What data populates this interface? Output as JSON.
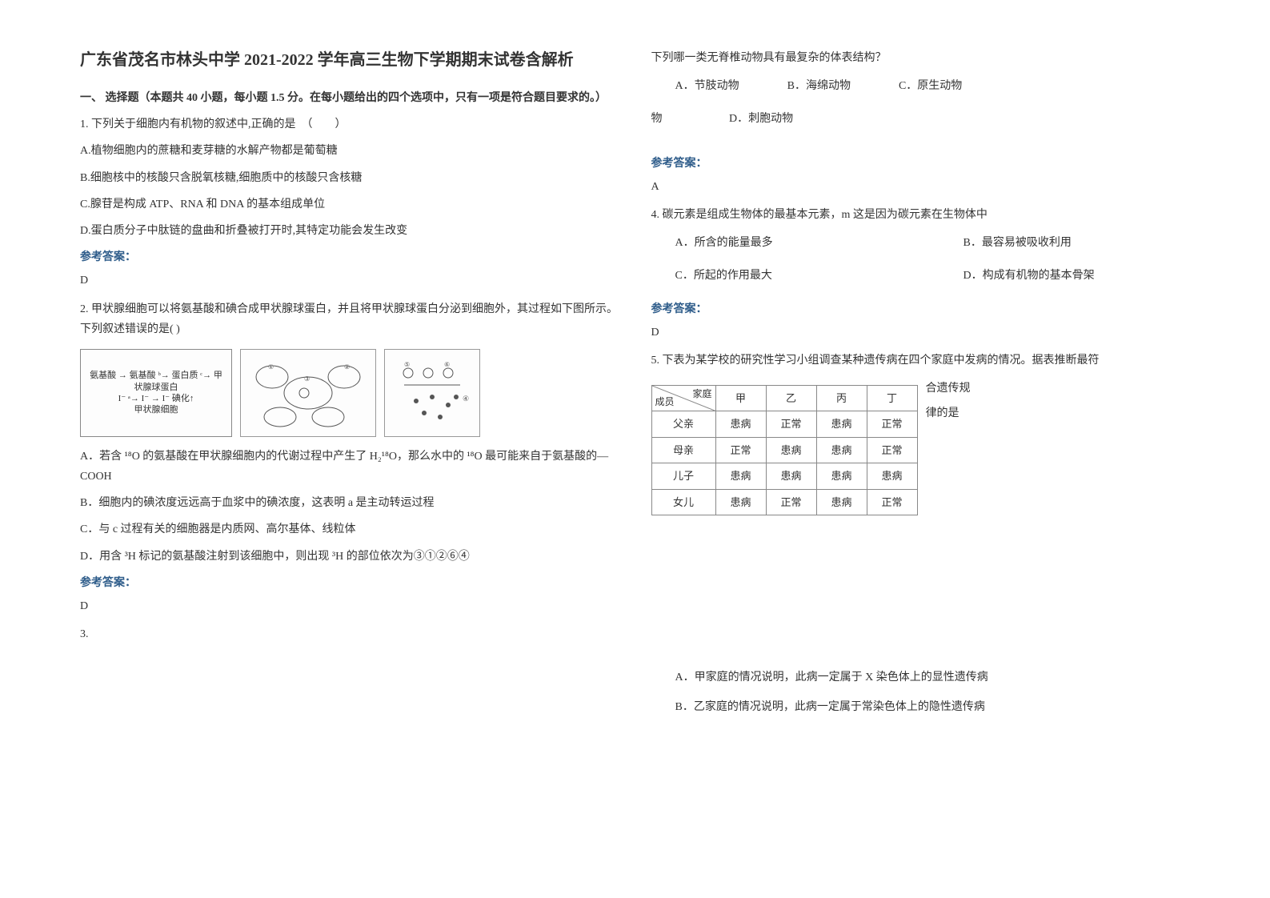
{
  "title": "广东省茂名市林头中学 2021-2022 学年高三生物下学期期末试卷含解析",
  "section_heading": "一、 选择题（本题共 40 小题，每小题 1.5 分。在每小题给出的四个选项中，只有一项是符合题目要求的。）",
  "q1": {
    "stem": "1. 下列关于细胞内有机物的叙述中,正确的是　（　　）",
    "optA": "A.植物细胞内的蔗糖和麦芽糖的水解产物都是葡萄糖",
    "optB": "B.细胞核中的核酸只含脱氧核糖,细胞质中的核酸只含核糖",
    "optC": "C.腺苷是构成 ATP、RNA 和 DNA 的基本组成单位",
    "optD": "D.蛋白质分子中肽链的盘曲和折叠被打开时,其特定功能会发生改变",
    "answer_label": "参考答案：",
    "answer": "D"
  },
  "q2": {
    "stem": "2. 甲状腺细胞可以将氨基酸和碘合成甲状腺球蛋白，并且将甲状腺球蛋白分泌到细胞外，其过程如下图所示。下列叙述错误的是(   )",
    "diagram_left": "氨基酸 → 氨基酸 ᵇ→ 蛋白质 ᶜ→ 甲状腺球蛋白\n  I⁻ ᵃ→ I⁻ →  I⁻  碘化↑\n        甲状腺细胞",
    "optA": "A．若含 ¹⁸O 的氨基酸在甲状腺细胞内的代谢过程中产生了 H₂¹⁸O，那么水中的 ¹⁸O 最可能来自于氨基酸的—COOH",
    "optB": "B．细胞内的碘浓度远远高于血浆中的碘浓度，这表明 a 是主动转运过程",
    "optC": "C．与 c 过程有关的细胞器是内质网、高尔基体、线粒体",
    "optD": "D．用含 ³H 标记的氨基酸注射到该细胞中，则出现 ³H 的部位依次为③①②⑥④",
    "answer_label": "参考答案：",
    "answer": "D"
  },
  "q3_label": "3.",
  "q3": {
    "stem": "下列哪一类无脊椎动物具有最复杂的体表结构？",
    "optA": "A．节肢动物",
    "optB": "B．海绵动物",
    "optC": "C．原生动物",
    "optD": "D．刺胞动物",
    "answer_label": "参考答案：",
    "answer": "A",
    "thing": "物"
  },
  "q4": {
    "stem": "4. 碳元素是组成生物体的最基本元素，m 这是因为碳元素在生物体中",
    "optA": "A．所含的能量最多",
    "optB": "B．最容易被吸收利用",
    "optC": "C．所起的作用最大",
    "optD": "D．构成有机物的基本骨架",
    "answer_label": "参考答案：",
    "answer": "D"
  },
  "q5": {
    "stem_a": "5. 下表为某学校的研究性学习小组调查某种遗传病在四个家庭中发病的情况。据表推断最符",
    "side1": "合遗传规",
    "side2": "律的是",
    "table": {
      "diag_top": "家庭",
      "diag_bottom": "成员",
      "cols": [
        "甲",
        "乙",
        "丙",
        "丁"
      ],
      "rows": [
        {
          "label": "父亲",
          "cells": [
            "患病",
            "正常",
            "患病",
            "正常"
          ]
        },
        {
          "label": "母亲",
          "cells": [
            "正常",
            "患病",
            "患病",
            "正常"
          ]
        },
        {
          "label": "儿子",
          "cells": [
            "患病",
            "患病",
            "患病",
            "患病"
          ]
        },
        {
          "label": "女儿",
          "cells": [
            "患病",
            "正常",
            "患病",
            "正常"
          ]
        }
      ]
    },
    "optA": "A．甲家庭的情况说明，此病一定属于 X 染色体上的显性遗传病",
    "optB": "B．乙家庭的情况说明，此病一定属于常染色体上的隐性遗传病"
  },
  "colors": {
    "text": "#333333",
    "answer_label": "#2e5c8a",
    "border": "#888888",
    "bg": "#ffffff"
  }
}
